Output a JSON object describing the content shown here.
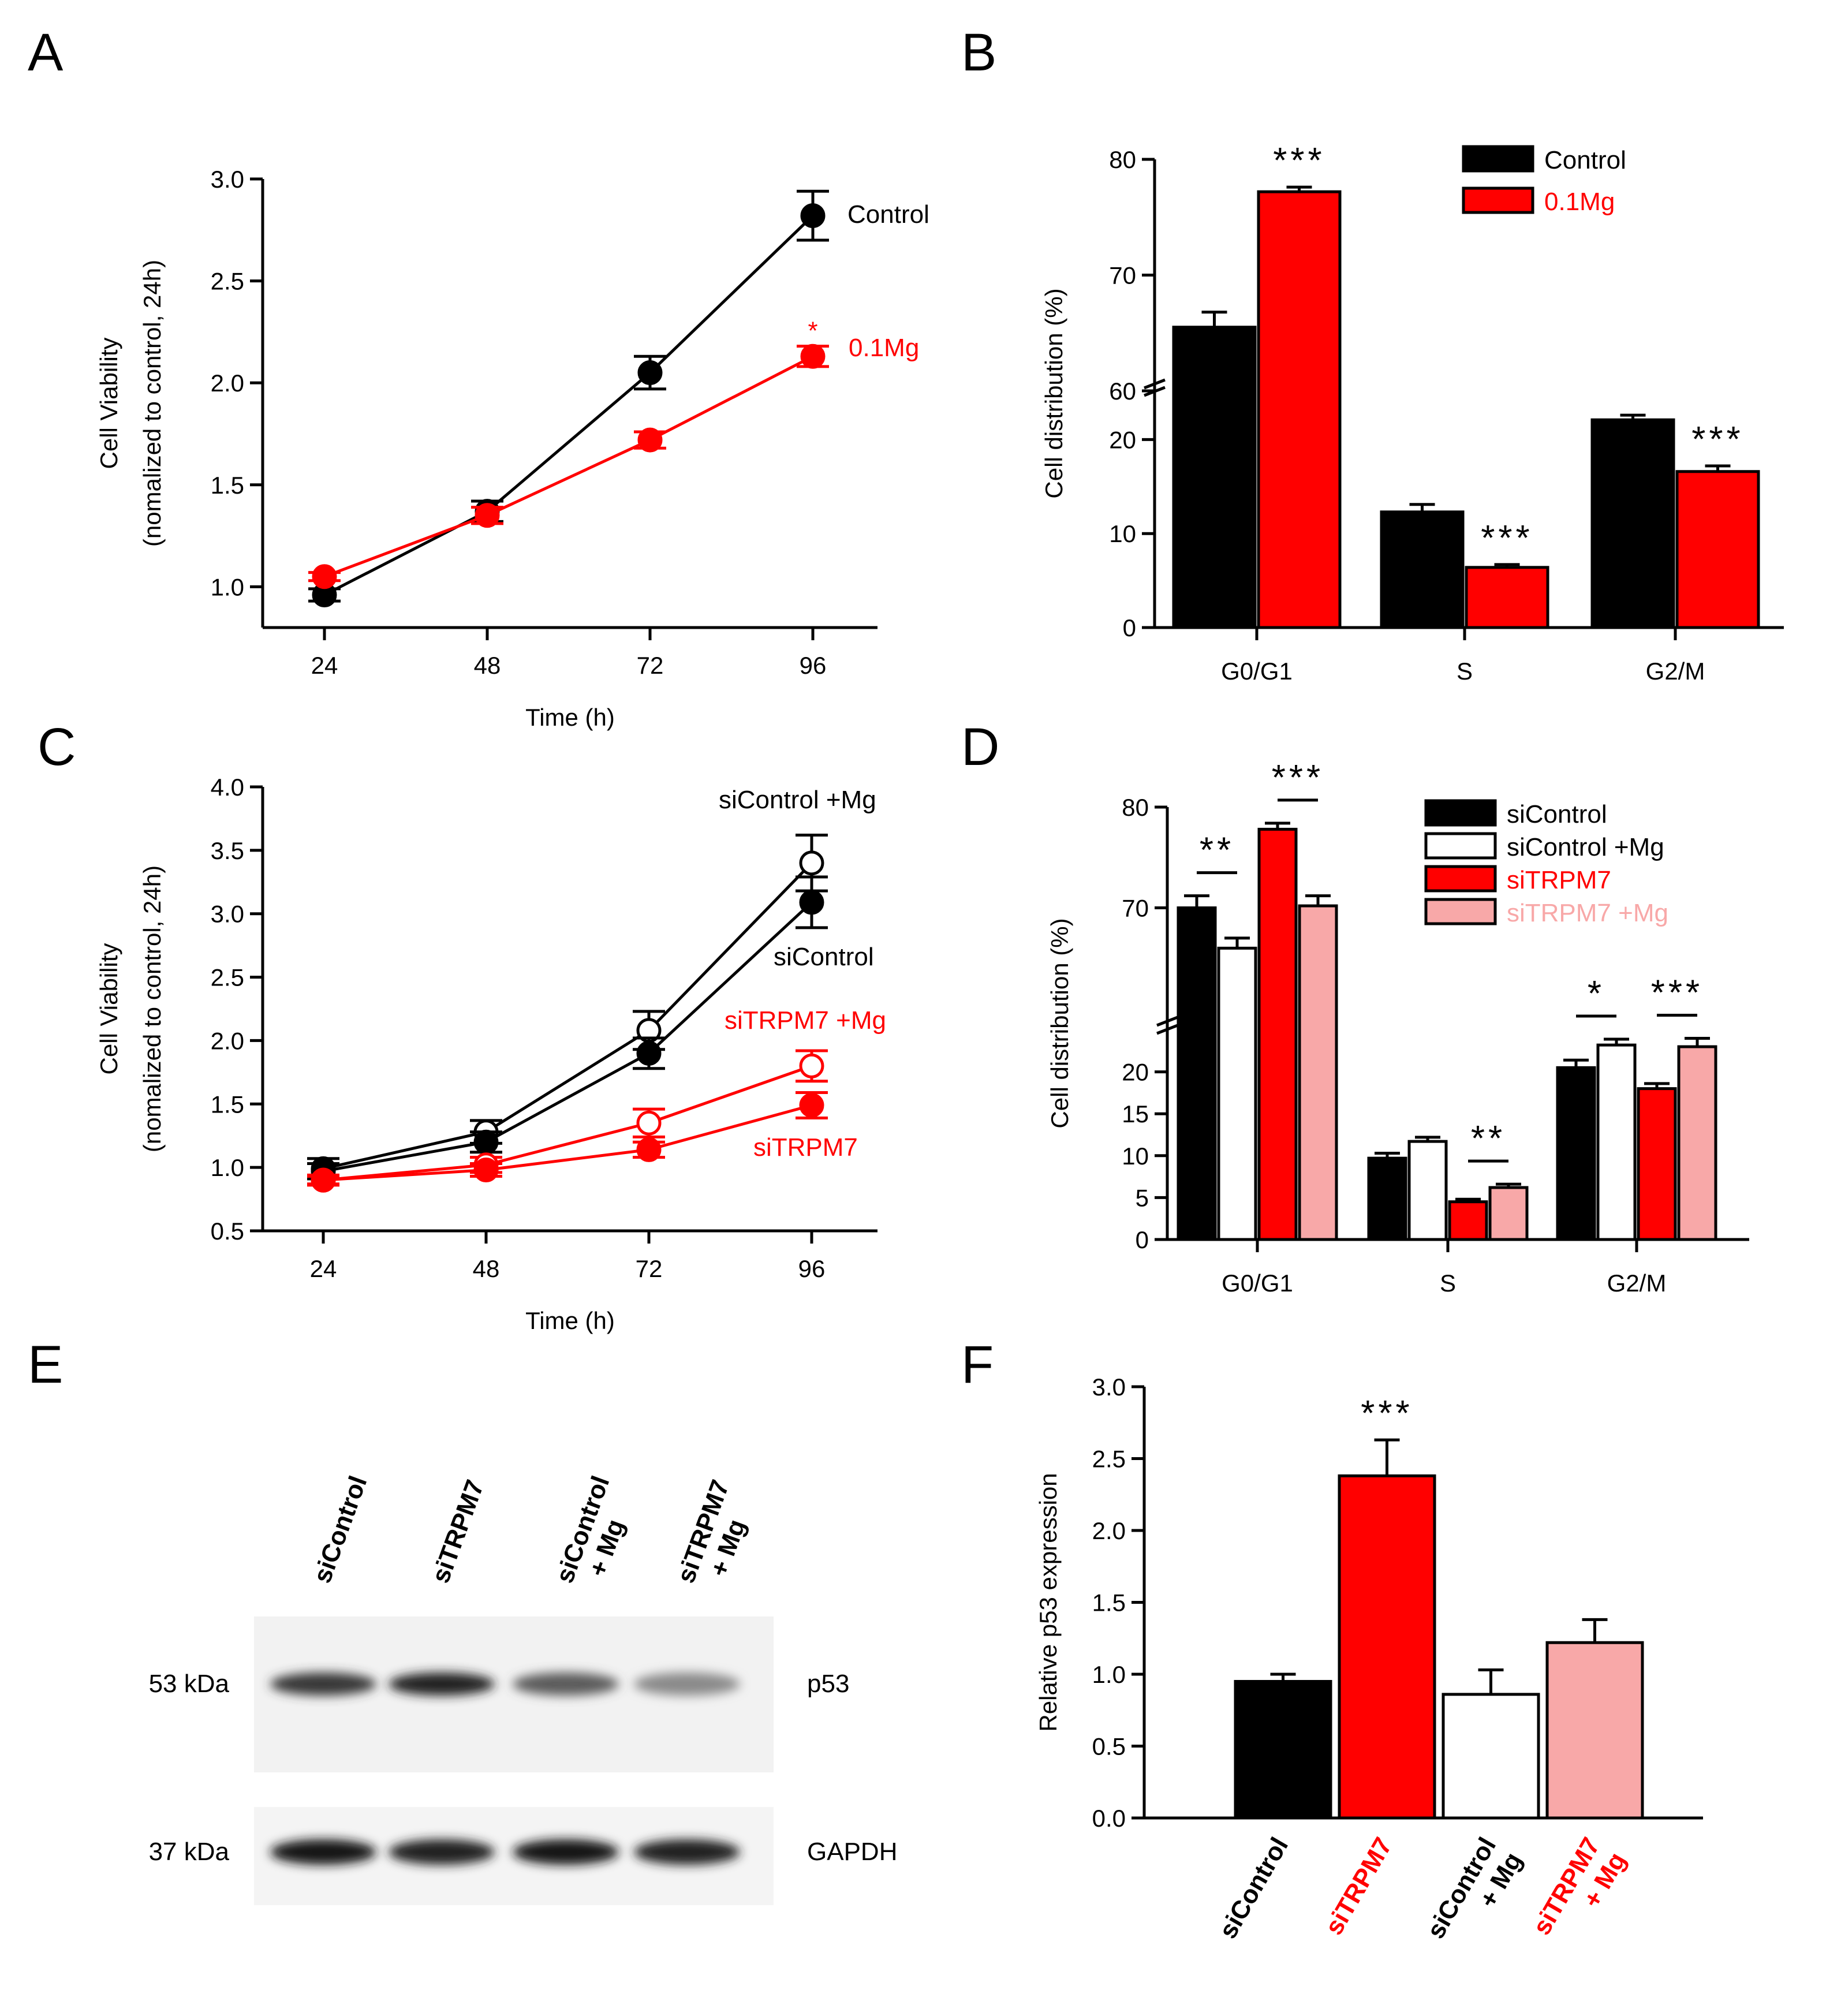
{
  "colors": {
    "black": "#000000",
    "red": "#ff0000",
    "white": "#ffffff",
    "pink": "#f8a8a8"
  },
  "chart_data": [
    {
      "panel": "A",
      "type": "line",
      "xlabel": "Time (h)",
      "ylabel_line1": "Cell Viability",
      "ylabel_line2": "(nomalized to control, 24h)",
      "x": [
        24,
        48,
        72,
        96
      ],
      "ylim": [
        0.8,
        3.0
      ],
      "yticks": [
        "1.0",
        "1.5",
        "2.0",
        "2.5",
        "3.0"
      ],
      "xticks": [
        "24",
        "48",
        "72",
        "96"
      ],
      "series": [
        {
          "name": "Control",
          "color": "#000000",
          "fill": "filled",
          "values": [
            0.96,
            1.37,
            2.05,
            2.82
          ],
          "err": [
            0.03,
            0.05,
            0.08,
            0.12
          ]
        },
        {
          "name": "0.1Mg",
          "color": "#ff0000",
          "fill": "filled",
          "values": [
            1.05,
            1.35,
            1.72,
            2.13
          ],
          "err": [
            0.02,
            0.04,
            0.04,
            0.05
          ],
          "annotation": "*"
        }
      ]
    },
    {
      "panel": "B",
      "type": "bar",
      "ylabel": "Cell distribution (%)",
      "categories": [
        "G0/G1",
        "S",
        "G2/M"
      ],
      "yticks_lower": [
        "0",
        "10",
        "20"
      ],
      "yticks_upper": [
        "60",
        "70",
        "80"
      ],
      "legend": [
        "Control",
        "0.1Mg"
      ],
      "series": [
        {
          "name": "Control",
          "color": "#000000",
          "values": [
            65.5,
            12.3,
            22.1
          ],
          "err": [
            1.3,
            0.8,
            0.5
          ]
        },
        {
          "name": "0.1Mg",
          "color": "#ff0000",
          "values": [
            77.2,
            6.4,
            16.6
          ],
          "err": [
            0.4,
            0.3,
            0.6
          ]
        }
      ],
      "annotations": [
        {
          "category": "G0/G1",
          "series": "0.1Mg",
          "text": "***"
        },
        {
          "category": "S",
          "series": "0.1Mg",
          "text": "***"
        },
        {
          "category": "G2/M",
          "series": "0.1Mg",
          "text": "***"
        }
      ]
    },
    {
      "panel": "C",
      "type": "line",
      "xlabel": "Time (h)",
      "ylabel_line1": "Cell Viability",
      "ylabel_line2": "(nomalized to control, 24h)",
      "x": [
        24,
        48,
        72,
        96
      ],
      "ylim": [
        0.5,
        4.0
      ],
      "yticks": [
        "0.5",
        "1.0",
        "1.5",
        "2.0",
        "2.5",
        "3.0",
        "3.5",
        "4.0"
      ],
      "xticks": [
        "24",
        "48",
        "72",
        "96"
      ],
      "series": [
        {
          "name": "siControl +Mg",
          "color": "#000000",
          "fill": "open",
          "values": [
            0.99,
            1.28,
            2.08,
            3.4
          ],
          "err": [
            0.08,
            0.09,
            0.15,
            0.22
          ]
        },
        {
          "name": "siControl",
          "color": "#000000",
          "fill": "filled",
          "values": [
            0.97,
            1.2,
            1.9,
            3.09
          ],
          "err": [
            0.06,
            0.08,
            0.12,
            0.2
          ]
        },
        {
          "name": "siTRPM7 +Mg",
          "color": "#ff0000",
          "fill": "open",
          "values": [
            0.9,
            1.02,
            1.35,
            1.8
          ],
          "err": [
            0.04,
            0.06,
            0.11,
            0.12
          ]
        },
        {
          "name": "siTRPM7",
          "color": "#ff0000",
          "fill": "filled",
          "values": [
            0.9,
            0.98,
            1.14,
            1.49
          ],
          "err": [
            0.03,
            0.05,
            0.06,
            0.1
          ]
        }
      ]
    },
    {
      "panel": "D",
      "type": "bar",
      "ylabel": "Cell distribution (%)",
      "categories": [
        "G0/G1",
        "S",
        "G2/M"
      ],
      "yticks_lower": [
        "0",
        "5",
        "10",
        "15",
        "20"
      ],
      "yticks_upper": [
        "70",
        "80"
      ],
      "legend": [
        "siControl",
        "siControl +Mg",
        "siTRPM7",
        "siTRPM7 +Mg"
      ],
      "series": [
        {
          "name": "siControl",
          "color": "#000000",
          "values": [
            70.0,
            9.7,
            20.5
          ],
          "err": [
            1.2,
            0.6,
            0.9
          ]
        },
        {
          "name": "siControl +Mg",
          "color": "#ffffff",
          "values": [
            66.0,
            11.7,
            23.2
          ],
          "err": [
            1.0,
            0.5,
            0.7
          ]
        },
        {
          "name": "siTRPM7",
          "color": "#ff0000",
          "values": [
            77.8,
            4.5,
            18.0
          ],
          "err": [
            0.6,
            0.3,
            0.6
          ]
        },
        {
          "name": "siTRPM7 +Mg",
          "color": "#f8a8a8",
          "values": [
            70.2,
            6.2,
            23.0
          ],
          "err": [
            1.0,
            0.4,
            1.0
          ]
        }
      ],
      "annotations": [
        {
          "category": "G0/G1",
          "pair": [
            "siControl",
            "siControl +Mg"
          ],
          "text": "**"
        },
        {
          "category": "G0/G1",
          "pair": [
            "siTRPM7",
            "siTRPM7 +Mg"
          ],
          "text": "***"
        },
        {
          "category": "S",
          "pair": [
            "siTRPM7",
            "siTRPM7 +Mg"
          ],
          "text": "**"
        },
        {
          "category": "G2/M",
          "pair": [
            "siControl",
            "siControl +Mg"
          ],
          "text": "*"
        },
        {
          "category": "G2/M",
          "pair": [
            "siTRPM7",
            "siTRPM7 +Mg"
          ],
          "text": "***"
        }
      ]
    },
    {
      "panel": "F",
      "type": "bar",
      "ylabel": "Relative p53 expression",
      "ylim": [
        0,
        3.0
      ],
      "yticks": [
        "0.0",
        "0.5",
        "1.0",
        "1.5",
        "2.0",
        "2.5",
        "3.0"
      ],
      "categories": [
        "siControl",
        "siTRPM7",
        "siControl + Mg",
        "siTRPM7 + Mg"
      ],
      "values": [
        0.95,
        2.38,
        0.86,
        1.22
      ],
      "err": [
        0.05,
        0.25,
        0.17,
        0.16
      ],
      "colors": [
        "#000000",
        "#ff0000",
        "#ffffff",
        "#f8a8a8"
      ],
      "label_colors": [
        "#000000",
        "#ff0000",
        "#000000",
        "#ff0000"
      ],
      "annotations": [
        {
          "category": "siTRPM7",
          "text": "***"
        }
      ]
    }
  ],
  "blot": {
    "panel": "E",
    "lanes": [
      {
        "line1": "siControl",
        "line2": ""
      },
      {
        "line1": "siTRPM7",
        "line2": ""
      },
      {
        "line1": "siControl",
        "line2": "+ Mg"
      },
      {
        "line1": "siTRPM7",
        "line2": "+ Mg"
      }
    ],
    "bands": [
      {
        "target": "p53",
        "mw": "53 kDa",
        "intensities": [
          0.85,
          0.95,
          0.7,
          0.5
        ]
      },
      {
        "target": "GAPDH",
        "mw": "37 kDa",
        "intensities": [
          1.0,
          0.95,
          1.0,
          0.95
        ]
      }
    ]
  }
}
